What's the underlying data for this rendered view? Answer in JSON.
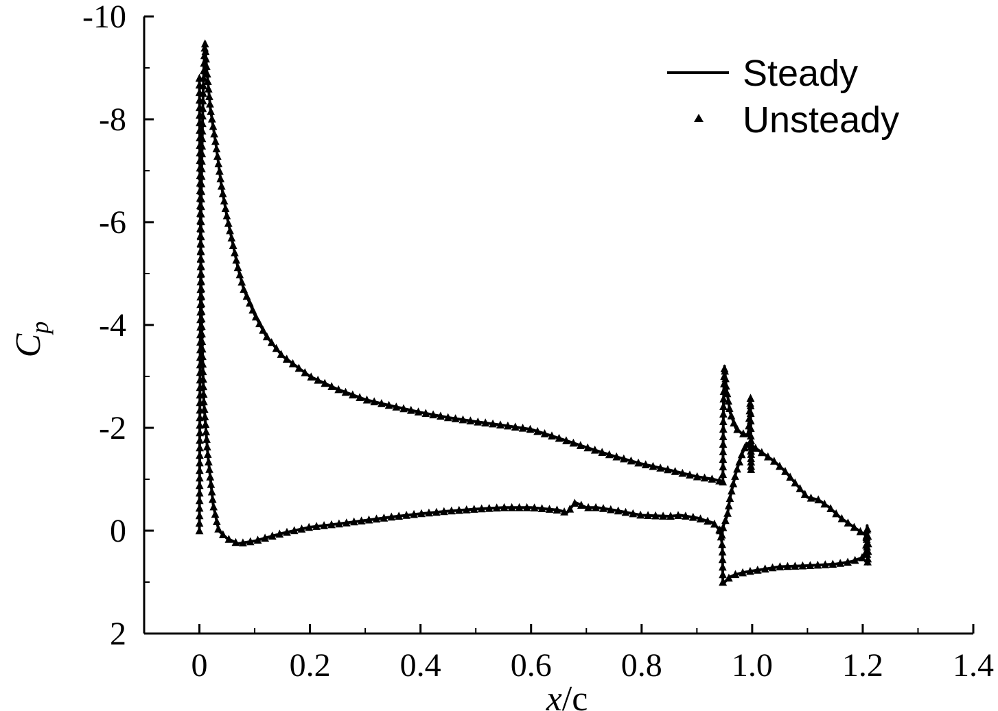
{
  "chart_data": {
    "type": "line",
    "xlabel_var": "x",
    "xlabel_rest": "/c",
    "ylabel_var": "C",
    "ylabel_sub": "p",
    "xlim": [
      -0.1,
      1.4
    ],
    "ylim": [
      2,
      -10
    ],
    "y_inverted": true,
    "x_ticks": [
      0,
      0.2,
      0.4,
      0.6,
      0.8,
      1.0,
      1.2,
      1.4
    ],
    "x_tick_labels": [
      "0",
      "0.2",
      "0.4",
      "0.6",
      "0.8",
      "1.0",
      "1.2",
      "1.4"
    ],
    "y_ticks": [
      -10,
      -8,
      -6,
      -4,
      -2,
      0,
      2
    ],
    "y_tick_labels": [
      "-10",
      "-8",
      "-6",
      "-4",
      "-2",
      "0",
      "2"
    ],
    "grid": false,
    "legend_position": "top-right",
    "series": [
      {
        "name": "Steady",
        "style": "line",
        "curves": [
          [
            [
              0.0,
              0.0
            ],
            [
              0.001,
              -2.7
            ],
            [
              0.002,
              -4.5
            ],
            [
              0.003,
              -6.2
            ],
            [
              0.004,
              -7.0
            ],
            [
              0.006,
              -8.2
            ],
            [
              0.008,
              -9.0
            ],
            [
              0.01,
              -9.5
            ],
            [
              0.013,
              -9.0
            ],
            [
              0.02,
              -8.2
            ],
            [
              0.03,
              -7.5
            ],
            [
              0.04,
              -6.7
            ],
            [
              0.05,
              -6.1
            ],
            [
              0.06,
              -5.6
            ],
            [
              0.07,
              -5.1
            ],
            [
              0.08,
              -4.7
            ],
            [
              0.1,
              -4.2
            ],
            [
              0.12,
              -3.8
            ],
            [
              0.15,
              -3.4
            ],
            [
              0.2,
              -3.0
            ],
            [
              0.25,
              -2.75
            ],
            [
              0.3,
              -2.55
            ],
            [
              0.35,
              -2.42
            ],
            [
              0.4,
              -2.3
            ],
            [
              0.45,
              -2.2
            ],
            [
              0.5,
              -2.12
            ],
            [
              0.55,
              -2.05
            ],
            [
              0.6,
              -1.97
            ],
            [
              0.65,
              -1.8
            ],
            [
              0.7,
              -1.62
            ],
            [
              0.75,
              -1.45
            ],
            [
              0.8,
              -1.3
            ],
            [
              0.85,
              -1.18
            ],
            [
              0.9,
              -1.05
            ],
            [
              0.93,
              -1.0
            ],
            [
              0.947,
              -0.95
            ]
          ],
          [
            [
              0.947,
              1.0
            ],
            [
              0.946,
              0.3
            ],
            [
              0.942,
              0.0
            ],
            [
              0.93,
              -0.15
            ],
            [
              0.9,
              -0.25
            ],
            [
              0.87,
              -0.3
            ],
            [
              0.85,
              -0.28
            ],
            [
              0.8,
              -0.3
            ],
            [
              0.75,
              -0.4
            ],
            [
              0.72,
              -0.45
            ],
            [
              0.7,
              -0.45
            ],
            [
              0.68,
              -0.55
            ],
            [
              0.665,
              -0.35
            ],
            [
              0.65,
              -0.4
            ],
            [
              0.6,
              -0.45
            ],
            [
              0.55,
              -0.45
            ],
            [
              0.5,
              -0.42
            ],
            [
              0.45,
              -0.38
            ],
            [
              0.4,
              -0.33
            ],
            [
              0.35,
              -0.27
            ],
            [
              0.3,
              -0.2
            ],
            [
              0.25,
              -0.13
            ],
            [
              0.2,
              -0.07
            ],
            [
              0.15,
              0.05
            ],
            [
              0.1,
              0.2
            ],
            [
              0.07,
              0.25
            ],
            [
              0.05,
              0.15
            ],
            [
              0.035,
              0.0
            ],
            [
              0.025,
              -0.5
            ],
            [
              0.015,
              -1.5
            ],
            [
              0.008,
              -2.5
            ],
            [
              0.004,
              -4.0
            ],
            [
              0.002,
              -5.8
            ],
            [
              0.001,
              -7.0
            ],
            [
              0.0,
              -8.8
            ]
          ],
          [
            [
              0.947,
              -0.95
            ],
            [
              0.948,
              -2.5
            ],
            [
              0.95,
              -3.2
            ],
            [
              0.953,
              -2.8
            ],
            [
              0.96,
              -2.3
            ],
            [
              0.97,
              -2.0
            ],
            [
              0.98,
              -1.9
            ],
            [
              0.993,
              -1.85
            ],
            [
              0.997,
              -2.6
            ],
            [
              0.998,
              -1.15
            ],
            [
              0.998,
              -1.75
            ]
          ],
          [
            [
              0.947,
              1.0
            ],
            [
              0.95,
              1.0
            ],
            [
              0.96,
              0.9
            ],
            [
              0.97,
              0.85
            ],
            [
              0.99,
              0.8
            ],
            [
              1.02,
              0.75
            ],
            [
              1.05,
              0.7
            ],
            [
              1.1,
              0.68
            ],
            [
              1.15,
              0.65
            ],
            [
              1.18,
              0.6
            ],
            [
              1.205,
              0.5
            ],
            [
              1.208,
              -0.1
            ],
            [
              1.21,
              0.2
            ],
            [
              1.209,
              0.65
            ],
            [
              1.208,
              0.4
            ],
            [
              1.207,
              0.1
            ]
          ],
          [
            [
              1.207,
              0.1
            ],
            [
              1.2,
              0.05
            ],
            [
              1.18,
              -0.1
            ],
            [
              1.16,
              -0.25
            ],
            [
              1.14,
              -0.45
            ],
            [
              1.12,
              -0.6
            ],
            [
              1.1,
              -0.65
            ],
            [
              1.08,
              -0.9
            ],
            [
              1.06,
              -1.15
            ],
            [
              1.04,
              -1.35
            ],
            [
              1.02,
              -1.5
            ],
            [
              1.0,
              -1.65
            ],
            [
              0.99,
              -1.7
            ],
            [
              0.98,
              -1.45
            ],
            [
              0.97,
              -1.1
            ],
            [
              0.96,
              -0.65
            ],
            [
              0.955,
              -0.3
            ],
            [
              0.948,
              -0.1
            ],
            [
              0.945,
              0.1
            ],
            [
              0.942,
              0.0
            ]
          ]
        ]
      },
      {
        "name": "Unsteady",
        "style": "markers",
        "marker": "triangle"
      }
    ]
  }
}
